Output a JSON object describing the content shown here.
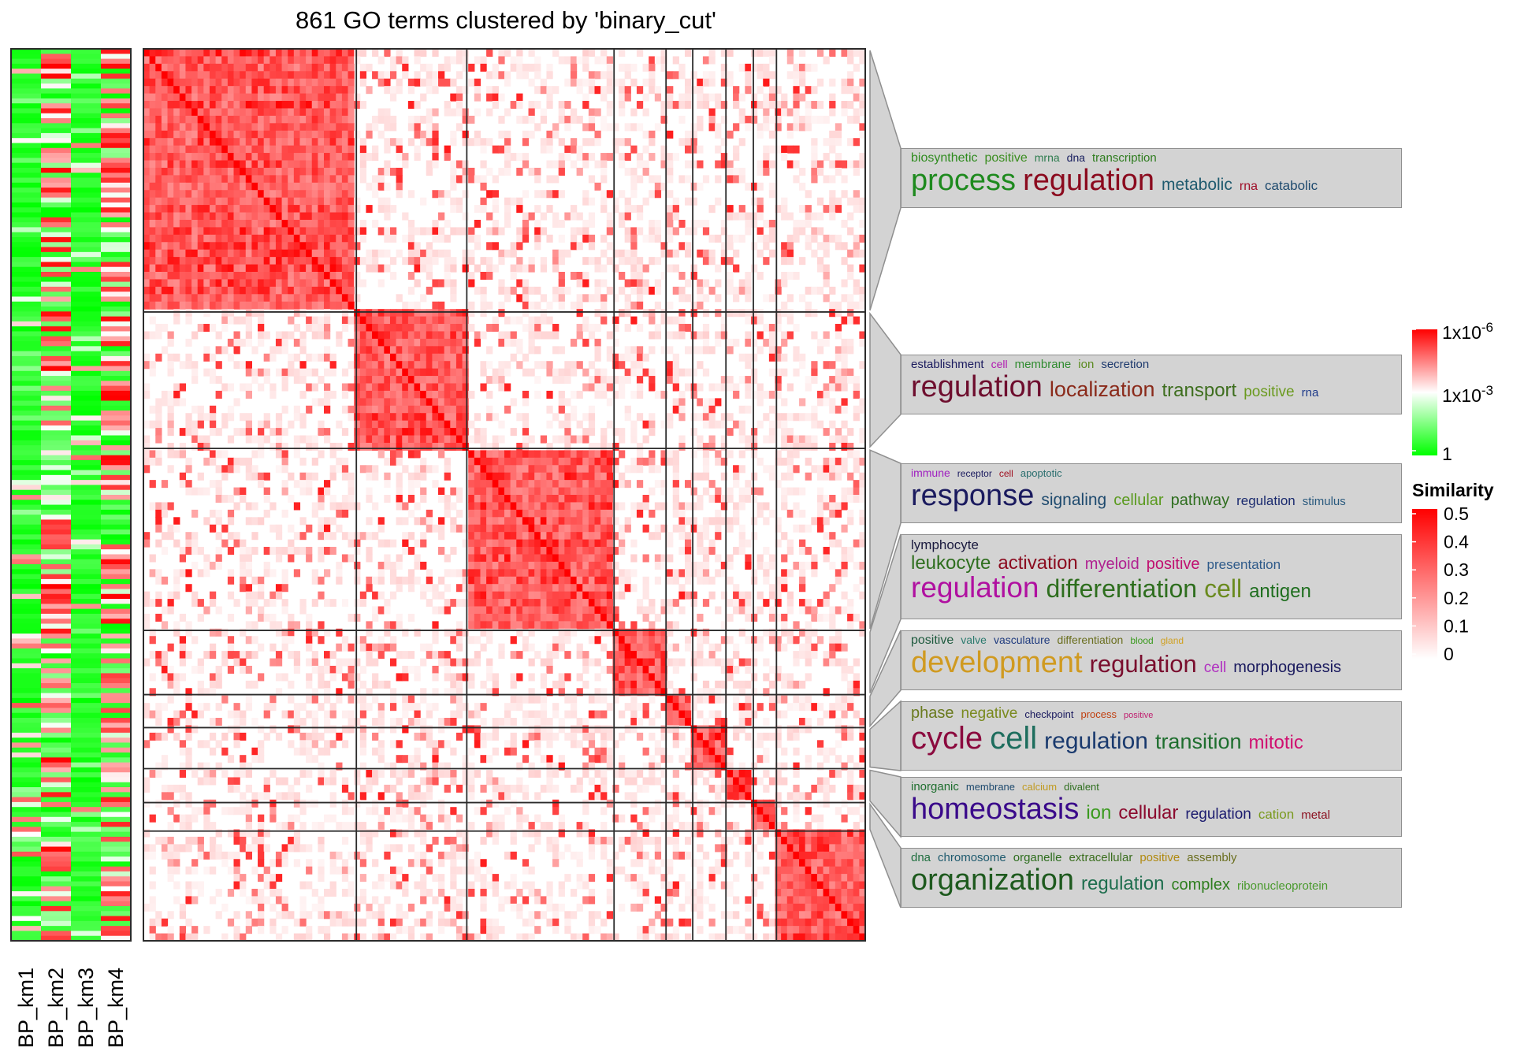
{
  "title": "861 GO terms clustered by 'binary_cut'",
  "chart_data": {
    "type": "heatmap",
    "title": "861 GO terms clustered by 'binary_cut'",
    "n_terms": 861,
    "method": "binary_cut",
    "cluster_proportions": [
      0.295,
      0.153,
      0.204,
      0.072,
      0.037,
      0.046,
      0.038,
      0.032,
      0.123
    ],
    "annotation_columns": [
      "BP_km1",
      "BP_km2",
      "BP_km3",
      "BP_km4"
    ],
    "pvalue_legend": {
      "ticks": [
        "1x10-6",
        "1x10-3",
        "1"
      ],
      "colors": [
        "#ff0000",
        "#ffffff",
        "#00ff00"
      ]
    },
    "similarity_legend": {
      "title": "Similarity",
      "ticks": [
        "0.5",
        "0.4",
        "0.3",
        "0.2",
        "0.1",
        "0"
      ],
      "colors": [
        "#ff0000",
        "#ffffff"
      ]
    },
    "word_clouds": [
      {
        "lines": [
          [
            [
              "biosynthetic",
              16,
              "#2e8b1e"
            ],
            [
              "positive",
              16,
              "#3a8d1f"
            ],
            [
              "mrna",
              14,
              "#2f7d4f"
            ],
            [
              "dna",
              14,
              "#1a2060"
            ],
            [
              "transcription",
              15,
              "#2f7d1f"
            ]
          ],
          [
            [
              "process",
              38,
              "#1e8a1e"
            ],
            [
              "regulation",
              38,
              "#8b0a1e"
            ],
            [
              "metabolic",
              21,
              "#1e5a6e"
            ],
            [
              "rna",
              16,
              "#a0102a"
            ],
            [
              "catabolic",
              17,
              "#1e4a6e"
            ]
          ]
        ]
      },
      {
        "lines": [
          [
            [
              "establishment",
              15,
              "#1a1a5e"
            ],
            [
              "cell",
              14,
              "#b01ab0"
            ],
            [
              "membrane",
              15,
              "#2f8b2f"
            ],
            [
              "ion",
              15,
              "#5a8a1e"
            ],
            [
              "secretion",
              15,
              "#1e3a6e"
            ]
          ],
          [
            [
              "regulation",
              38,
              "#6e0e2e"
            ],
            [
              "localization",
              27,
              "#8a2a1a"
            ],
            [
              "transport",
              24,
              "#3e6e1e"
            ],
            [
              "positive",
              19,
              "#6a9a1e"
            ],
            [
              "rna",
              15,
              "#1e3a8a"
            ]
          ]
        ]
      },
      {
        "lines": [
          [
            [
              "immune",
              14,
              "#a020c0"
            ],
            [
              "receptor",
              12,
              "#1a1a5e"
            ],
            [
              "cell",
              12,
              "#a01020"
            ],
            [
              "apoptotic",
              13,
              "#2a6e6e"
            ]
          ],
          [
            [
              "response",
              38,
              "#1a1a5e"
            ],
            [
              "signaling",
              21,
              "#1e4a6e"
            ],
            [
              "cellular",
              20,
              "#5a9a1e"
            ],
            [
              "pathway",
              20,
              "#2e6e1e"
            ],
            [
              "regulation",
              17,
              "#1a2a6e"
            ],
            [
              "stimulus",
              15,
              "#2a5a7e"
            ]
          ]
        ]
      },
      {
        "lines": [
          [
            [
              "lymphocyte",
              17,
              "#1a1a3e"
            ]
          ],
          [
            [
              "leukocyte",
              24,
              "#2e6e1e"
            ],
            [
              "activation",
              24,
              "#8b0a1e"
            ],
            [
              "myeloid",
              20,
              "#b02090"
            ],
            [
              "positive",
              20,
              "#c01070"
            ],
            [
              "presentation",
              17,
              "#2e5a8a"
            ]
          ],
          [
            [
              "regulation",
              37,
              "#b010a0"
            ],
            [
              "differentiation",
              32,
              "#2e6e1e"
            ],
            [
              "cell",
              32,
              "#6a8a1e"
            ],
            [
              "antigen",
              24,
              "#1e6e1e"
            ]
          ]
        ]
      },
      {
        "lines": [
          [
            [
              "positive",
              16,
              "#1e5a3e"
            ],
            [
              "valve",
              14,
              "#2a7a6e"
            ],
            [
              "vasculature",
              14,
              "#1e3a7e"
            ],
            [
              "differentiation",
              14,
              "#6a6e1e"
            ],
            [
              "blood",
              12,
              "#3a9a1e"
            ],
            [
              "gland",
              12,
              "#d0a020"
            ]
          ],
          [
            [
              "development",
              38,
              "#d09a20"
            ],
            [
              "regulation",
              31,
              "#7a0e2e"
            ],
            [
              "cell",
              19,
              "#b030c0"
            ],
            [
              "morphogenesis",
              20,
              "#1a1a5e"
            ]
          ]
        ]
      },
      {
        "lines": [
          [
            [
              "phase",
              20,
              "#6a7a1e"
            ],
            [
              "negative",
              19,
              "#7a8a1e"
            ],
            [
              "checkpoint",
              13,
              "#1a1a5e"
            ],
            [
              "process",
              13,
              "#c04010"
            ],
            [
              "positive",
              11,
              "#c02070"
            ]
          ],
          [
            [
              "cycle",
              40,
              "#8b0a3e"
            ],
            [
              "cell",
              40,
              "#1e6e5e"
            ],
            [
              "regulation",
              30,
              "#1a3a6e"
            ],
            [
              "transition",
              27,
              "#1e6e2e"
            ],
            [
              "mitotic",
              24,
              "#d01070"
            ]
          ]
        ]
      },
      {
        "lines": [
          [
            [
              "inorganic",
              15,
              "#1e6e2e"
            ],
            [
              "membrane",
              13,
              "#1e4a6e"
            ],
            [
              "calcium",
              13,
              "#c09a20"
            ],
            [
              "divalent",
              13,
              "#2e6e1e"
            ]
          ],
          [
            [
              "homeostasis",
              38,
              "#3a0a8a"
            ],
            [
              "ion",
              24,
              "#3a9a1e"
            ],
            [
              "cellular",
              24,
              "#8b0a2e"
            ],
            [
              "regulation",
              19,
              "#1a1a6e"
            ],
            [
              "cation",
              17,
              "#7a9a1e"
            ],
            [
              "metal",
              15,
              "#8a0e1e"
            ]
          ]
        ]
      },
      {
        "lines": [
          [
            [
              "dna",
              15,
              "#1e6e3e"
            ],
            [
              "chromosome",
              15,
              "#1e5a6e"
            ],
            [
              "organelle",
              15,
              "#2e6e1e"
            ],
            [
              "extracellular",
              15,
              "#3a6e1e"
            ],
            [
              "positive",
              15,
              "#b08a10"
            ],
            [
              "assembly",
              15,
              "#6a6e1e"
            ]
          ],
          [
            [
              "organization",
              38,
              "#1e5a1e"
            ],
            [
              "regulation",
              24,
              "#1e6e4e"
            ],
            [
              "complex",
              20,
              "#2e7e1e"
            ],
            [
              "ribonucleoprotein",
              15,
              "#4a9a2e"
            ]
          ]
        ]
      }
    ]
  }
}
